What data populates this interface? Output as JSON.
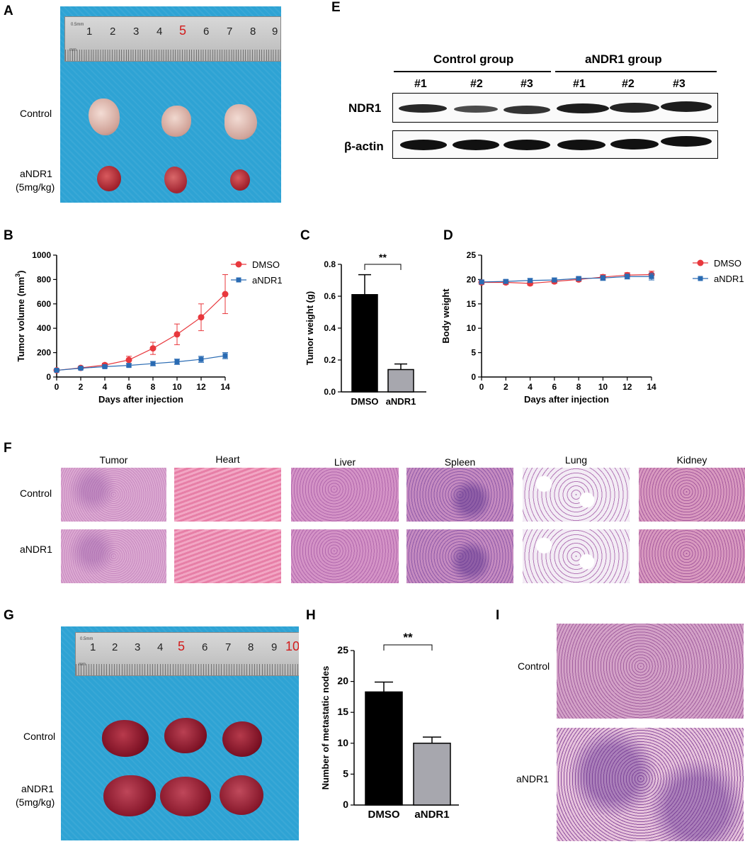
{
  "panels": {
    "A": {
      "letter": "A",
      "rows": [
        "Control",
        "aNDR1\n(5mg/kg)"
      ],
      "row_control": "Control",
      "row_andr1_line1": "aNDR1",
      "row_andr1_line2": "(5mg/kg)",
      "ruler_numbers": [
        "1",
        "2",
        "3",
        "4",
        "5",
        "6",
        "7",
        "8",
        "9"
      ],
      "ruler_small_text": "0.5mm",
      "ruler_unit": "mm"
    },
    "E": {
      "letter": "E",
      "group1": "Control  group",
      "group2": "aNDR1  group",
      "lanes": [
        "#1",
        "#2",
        "#3",
        "#1",
        "#2",
        "#3"
      ],
      "row1": "NDR1",
      "row2": "β-actin"
    },
    "B": {
      "letter": "B"
    },
    "C": {
      "letter": "C"
    },
    "D": {
      "letter": "D"
    },
    "F": {
      "letter": "F",
      "tissues": [
        "Tumor",
        "Heart",
        "Liver",
        "Spleen",
        "Lung",
        "Kidney"
      ],
      "row_control": "Control",
      "row_andr1": "aNDR1"
    },
    "G": {
      "letter": "G",
      "row_control": "Control",
      "row_andr1_line1": "aNDR1",
      "row_andr1_line2": "(5mg/kg)",
      "ruler_numbers": [
        "1",
        "2",
        "3",
        "4",
        "5",
        "6",
        "7",
        "8",
        "9",
        "10"
      ],
      "ruler_small_text": "0.5mm",
      "ruler_unit": "mm"
    },
    "H": {
      "letter": "H"
    },
    "I": {
      "letter": "I",
      "row_control": "Control",
      "row_andr1": "aNDR1"
    }
  },
  "chart_data": [
    {
      "id": "B",
      "type": "line",
      "xlabel": "Days after injection",
      "ylabel": "Tumor volume (mm³)",
      "ylabel_main": "Tumor volume (mm",
      "ylabel_sup": "3",
      "ylabel_tail": ")",
      "x": [
        0,
        2,
        4,
        6,
        8,
        10,
        12,
        14
      ],
      "xlim": [
        0,
        14
      ],
      "ylim": [
        0,
        1000
      ],
      "yticks": [
        0,
        200,
        400,
        600,
        800,
        1000
      ],
      "xticks": [
        0,
        2,
        4,
        6,
        8,
        10,
        12,
        14
      ],
      "legend": "right",
      "series": [
        {
          "name": "DMSO",
          "color": "#e8383d",
          "marker": "circle",
          "values": [
            55,
            75,
            98,
            140,
            235,
            350,
            490,
            680
          ],
          "errors": [
            8,
            10,
            15,
            30,
            50,
            85,
            110,
            160
          ]
        },
        {
          "name": "aNDR1",
          "color": "#2a6bb3",
          "marker": "square",
          "values": [
            55,
            72,
            85,
            95,
            110,
            125,
            145,
            175
          ],
          "errors": [
            8,
            8,
            10,
            12,
            18,
            22,
            25,
            25
          ]
        }
      ]
    },
    {
      "id": "C",
      "type": "bar",
      "xlabel": "",
      "ylabel": "Tumor weight (g)",
      "categories": [
        "DMSO",
        "aNDR1"
      ],
      "values": [
        0.61,
        0.14
      ],
      "errors": [
        0.125,
        0.035
      ],
      "colors": [
        "#000000",
        "#a7a7ae"
      ],
      "ylim": [
        0,
        0.8
      ],
      "yticks": [
        0.0,
        0.2,
        0.4,
        0.6,
        0.8
      ],
      "significance": "**"
    },
    {
      "id": "D",
      "type": "line",
      "xlabel": "Days after injection",
      "ylabel": "Body weight",
      "x": [
        0,
        2,
        4,
        6,
        8,
        10,
        12,
        14
      ],
      "xlim": [
        0,
        14
      ],
      "ylim": [
        0,
        25
      ],
      "yticks": [
        0,
        5,
        10,
        15,
        20,
        25
      ],
      "xticks": [
        0,
        2,
        4,
        6,
        8,
        10,
        12,
        14
      ],
      "legend": "right",
      "series": [
        {
          "name": "DMSO",
          "color": "#e8383d",
          "marker": "circle",
          "values": [
            19.4,
            19.4,
            19.2,
            19.6,
            20.0,
            20.5,
            20.9,
            21.0
          ],
          "errors": [
            0.4,
            0.4,
            0.4,
            0.4,
            0.4,
            0.5,
            0.5,
            0.7
          ]
        },
        {
          "name": "aNDR1",
          "color": "#2a6bb3",
          "marker": "square",
          "values": [
            19.5,
            19.6,
            19.8,
            19.9,
            20.2,
            20.3,
            20.6,
            20.6
          ],
          "errors": [
            0.4,
            0.4,
            0.4,
            0.4,
            0.4,
            0.5,
            0.5,
            0.7
          ]
        }
      ]
    },
    {
      "id": "H",
      "type": "bar",
      "xlabel": "",
      "ylabel": "Number of metastatic nodes",
      "categories": [
        "DMSO",
        "aNDR1"
      ],
      "values": [
        18.3,
        10.0
      ],
      "errors": [
        1.6,
        1.0
      ],
      "colors": [
        "#000000",
        "#a7a7ae"
      ],
      "ylim": [
        0,
        25
      ],
      "yticks": [
        0,
        5,
        10,
        15,
        20,
        25
      ],
      "significance": "**"
    }
  ],
  "colors": {
    "photo_blue": "#31a4d2",
    "he_pink": "#d99ac4",
    "he_purple": "#8a4e9e"
  }
}
